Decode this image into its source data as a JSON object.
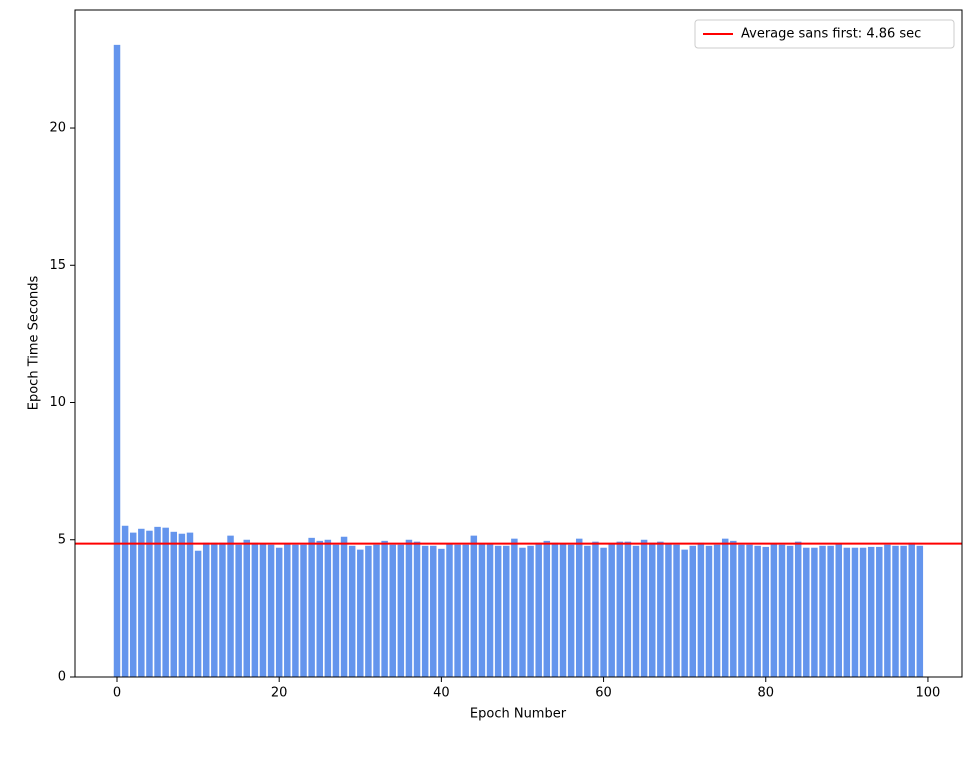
{
  "chart_data": {
    "type": "bar",
    "x_label": "Epoch Number",
    "y_label": "Epoch Time Seconds",
    "x": [
      0,
      1,
      2,
      3,
      4,
      5,
      6,
      7,
      8,
      9,
      10,
      11,
      12,
      13,
      14,
      15,
      16,
      17,
      18,
      19,
      20,
      21,
      22,
      23,
      24,
      25,
      26,
      27,
      28,
      29,
      30,
      31,
      32,
      33,
      34,
      35,
      36,
      37,
      38,
      39,
      40,
      41,
      42,
      43,
      44,
      45,
      46,
      47,
      48,
      49,
      50,
      51,
      52,
      53,
      54,
      55,
      56,
      57,
      58,
      59,
      60,
      61,
      62,
      63,
      64,
      65,
      66,
      67,
      68,
      69,
      70,
      71,
      72,
      73,
      74,
      75,
      76,
      77,
      78,
      79,
      80,
      81,
      82,
      83,
      84,
      85,
      86,
      87,
      88,
      89,
      90,
      91,
      92,
      93,
      94,
      95,
      96,
      97,
      98,
      99
    ],
    "values": [
      23.03,
      5.51,
      5.26,
      5.4,
      5.33,
      5.47,
      5.44,
      5.29,
      5.22,
      5.26,
      4.6,
      4.89,
      4.89,
      4.89,
      5.15,
      4.82,
      5.0,
      4.89,
      4.85,
      4.82,
      4.71,
      4.85,
      4.82,
      4.82,
      5.07,
      4.96,
      5.0,
      4.82,
      5.11,
      4.78,
      4.64,
      4.78,
      4.82,
      4.96,
      4.82,
      4.82,
      5.0,
      4.93,
      4.78,
      4.78,
      4.67,
      4.85,
      4.82,
      4.82,
      5.15,
      4.85,
      4.85,
      4.78,
      4.78,
      5.04,
      4.71,
      4.78,
      4.89,
      4.96,
      4.89,
      4.85,
      4.82,
      5.04,
      4.78,
      4.93,
      4.71,
      4.85,
      4.93,
      4.93,
      4.78,
      5.0,
      4.89,
      4.93,
      4.85,
      4.82,
      4.64,
      4.78,
      4.89,
      4.78,
      4.82,
      5.04,
      4.96,
      4.82,
      4.82,
      4.78,
      4.74,
      4.85,
      4.82,
      4.78,
      4.93,
      4.71,
      4.71,
      4.78,
      4.78,
      4.85,
      4.71,
      4.71,
      4.71,
      4.74,
      4.74,
      4.82,
      4.78,
      4.78,
      4.89,
      4.78
    ],
    "color": "#6495ed",
    "reference_line": {
      "name": "Average sans first: 4.86 sec",
      "value": 4.86,
      "color": "#ff0000"
    },
    "xlim": [
      -5.18,
      104.2
    ],
    "ylim": [
      0,
      24.3
    ],
    "xticks": [
      0,
      20,
      40,
      60,
      80,
      100
    ],
    "yticks": [
      0,
      5,
      10,
      15,
      20
    ],
    "legend": "upper right"
  }
}
